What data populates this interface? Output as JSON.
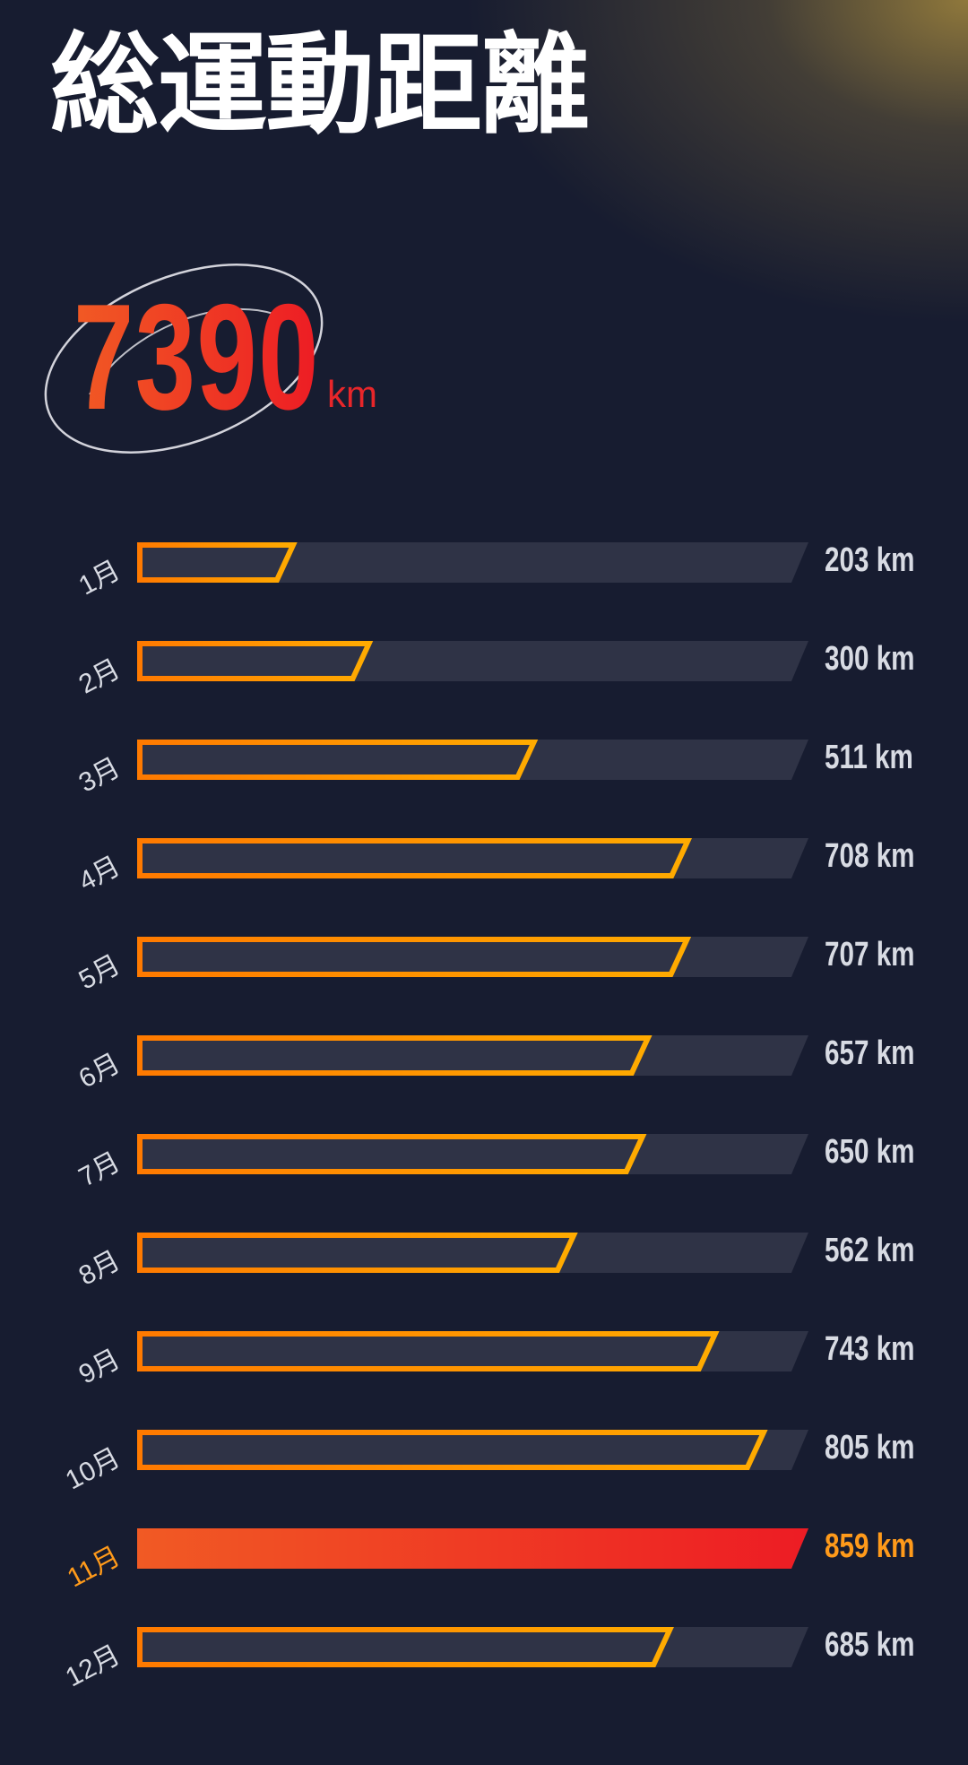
{
  "title": "総運動距離",
  "total": {
    "value": "7390",
    "unit": "km"
  },
  "colors": {
    "background": "#171c30",
    "track": "#2f3346",
    "outline_start": "#ff7a00",
    "outline_end": "#ffab00",
    "highlight_start": "#f15a24",
    "highlight_end": "#ed1c24",
    "highlight_text": "#ff9a1a",
    "text": "#d8dbe3"
  },
  "chart_data": {
    "type": "bar",
    "orientation": "horizontal",
    "categories": [
      "1月",
      "2月",
      "3月",
      "4月",
      "5月",
      "6月",
      "7月",
      "8月",
      "9月",
      "10月",
      "11月",
      "12月"
    ],
    "values": [
      203,
      300,
      511,
      708,
      707,
      657,
      650,
      562,
      743,
      805,
      859,
      685
    ],
    "unit": "km",
    "highlight": "11月",
    "xlim": [
      0,
      859
    ],
    "grid": false
  }
}
